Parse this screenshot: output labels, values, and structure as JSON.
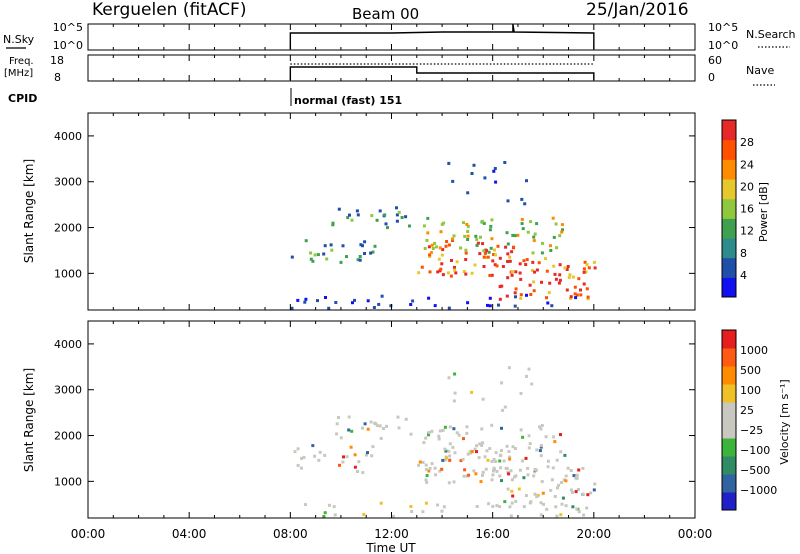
{
  "header": {
    "title": "Kerguelen (fitACF)",
    "beam": "Beam 00",
    "date": "25/Jan/2016"
  },
  "top_panel": {
    "nsky_label": "N.Sky",
    "nsky_ticks": [
      "10^5",
      "10^0"
    ],
    "nsearch_label": "N.Search",
    "nsearch_ticks": [
      "10^5",
      "10^0"
    ],
    "freq_label": "Freq.",
    "freq_unit": "[MHz]",
    "freq_ticks": [
      "18",
      "8"
    ],
    "nave_label": "Nave",
    "nave_ticks": [
      "60",
      "0"
    ],
    "cpid_label": "CPID",
    "cpid_text": "normal (fast) 151"
  },
  "chart_data": [
    {
      "type": "heatmap",
      "name": "power",
      "ylabel": "Slant Range [km]",
      "yticks": [
        1000,
        2000,
        3000,
        4000
      ],
      "ylim": [
        200,
        4500
      ],
      "xlim": [
        0,
        24
      ],
      "colorbar_label": "Power [dB]",
      "colorbar_ticks": [
        "4",
        "8",
        "12",
        "16",
        "20",
        "24",
        "28"
      ],
      "colorbar_colors": [
        "#1010f0",
        "#1f4fa8",
        "#2e8b8b",
        "#3fa050",
        "#8fc83c",
        "#e6c82d",
        "#ff8c00",
        "#ff5000",
        "#e62828"
      ],
      "data_extent_hours": [
        8,
        20
      ]
    },
    {
      "type": "heatmap",
      "name": "velocity",
      "ylabel": "Slant Range [km]",
      "yticks": [
        1000,
        2000,
        3000,
        4000
      ],
      "ylim": [
        200,
        4500
      ],
      "xlim": [
        0,
        24
      ],
      "xlabel": "Time UT",
      "xticks": [
        "00:00",
        "04:00",
        "08:00",
        "12:00",
        "16:00",
        "20:00",
        "00:00"
      ],
      "colorbar_label": "Velocity [m s⁻¹]",
      "colorbar_ticks": [
        "1000",
        "500",
        "100",
        "25",
        "−25",
        "−100",
        "−500",
        "−1000"
      ],
      "colorbar_colors": [
        "#2020c8",
        "#2f64a0",
        "#2f8c64",
        "#3cb43c",
        "#c8c8c0",
        "#c8c8c0",
        "#f0c028",
        "#ff8c00",
        "#ff5a14",
        "#e61e1e"
      ],
      "data_extent_hours": [
        8,
        20
      ]
    }
  ]
}
